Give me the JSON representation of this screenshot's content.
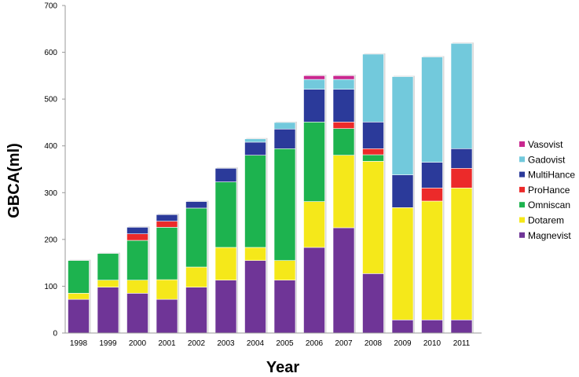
{
  "chart_data": {
    "type": "bar",
    "stacked": true,
    "title": "",
    "xlabel": "Year",
    "ylabel": "GBCA(ml)",
    "ylim": [
      0,
      700
    ],
    "yticks": [
      0,
      100,
      200,
      300,
      400,
      500,
      600,
      700
    ],
    "grid": false,
    "legend_position": "right",
    "categories": [
      "1998",
      "1999",
      "2000",
      "2001",
      "2002",
      "2003",
      "2004",
      "2005",
      "2006",
      "2007",
      "2008",
      "2009",
      "2010",
      "2011"
    ],
    "series": [
      {
        "name": "Magnevist",
        "color": "#6f3597",
        "values": [
          72,
          98,
          85,
          72,
          98,
          113,
          155,
          113,
          183,
          225,
          127,
          28,
          28,
          28
        ]
      },
      {
        "name": "Dotarem",
        "color": "#f5e81a",
        "values": [
          13,
          15,
          28,
          42,
          43,
          70,
          28,
          42,
          98,
          155,
          240,
          240,
          254,
          282
        ]
      },
      {
        "name": "Omniscan",
        "color": "#1db34f",
        "values": [
          70,
          57,
          85,
          112,
          126,
          140,
          197,
          239,
          170,
          57,
          14,
          0,
          0,
          0
        ]
      },
      {
        "name": "ProHance",
        "color": "#ec2a2a",
        "values": [
          0,
          0,
          14,
          13,
          0,
          0,
          0,
          0,
          0,
          14,
          13,
          0,
          28,
          42
        ]
      },
      {
        "name": "MultiHance",
        "color": "#2b3a9a",
        "values": [
          0,
          0,
          14,
          14,
          14,
          29,
          28,
          42,
          70,
          70,
          57,
          70,
          55,
          42
        ]
      },
      {
        "name": "Gadovist",
        "color": "#72c9dc",
        "values": [
          0,
          0,
          0,
          0,
          0,
          0,
          7,
          14,
          21,
          21,
          145,
          210,
          225,
          225
        ]
      },
      {
        "name": "Vasovist",
        "color": "#c9278f",
        "values": [
          0,
          0,
          0,
          0,
          0,
          0,
          0,
          0,
          8,
          8,
          0,
          0,
          0,
          0
        ]
      }
    ],
    "legend_order": [
      "Vasovist",
      "Gadovist",
      "MultiHance",
      "ProHance",
      "Omniscan",
      "Dotarem",
      "Magnevist"
    ]
  }
}
